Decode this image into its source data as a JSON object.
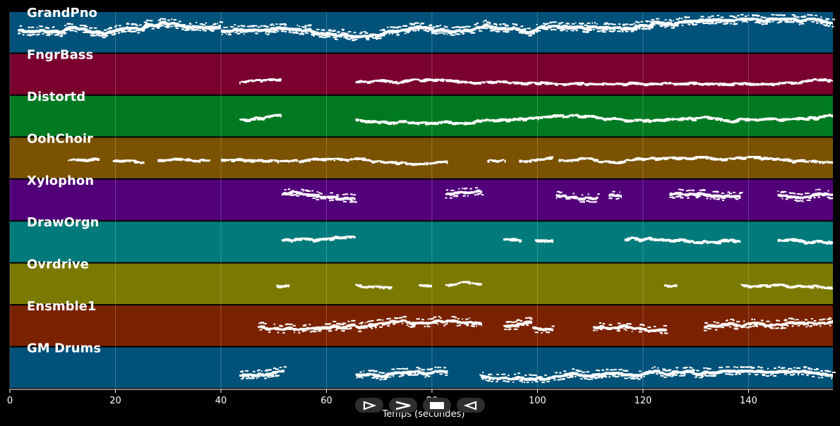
{
  "chart_data": {
    "type": "piano-roll",
    "xlabel": "Temps (secondes)",
    "xlim": [
      0,
      156
    ],
    "xticks": [
      0,
      20,
      40,
      60,
      80,
      100,
      120,
      140
    ],
    "grid": true,
    "tracks": [
      {
        "name": "GrandPno",
        "color": "#00527a",
        "segments": [
          [
            1.5,
            40
          ],
          [
            40,
            156
          ]
        ],
        "pitch_low": 0.15,
        "pitch_high": 0.7,
        "density": 1.2
      },
      {
        "name": "FngrBass",
        "color": "#7a002e",
        "segments": [
          [
            43.5,
            51.5
          ],
          [
            65.5,
            156
          ]
        ],
        "pitch_low": 0.6,
        "pitch_high": 0.72,
        "density": 0.5
      },
      {
        "name": "Distortd",
        "color": "#007a22",
        "segments": [
          [
            43.5,
            51.5
          ],
          [
            65.5,
            156
          ]
        ],
        "pitch_low": 0.45,
        "pitch_high": 0.65,
        "density": 0.6
      },
      {
        "name": "OohChoir",
        "color": "#7a5200",
        "segments": [
          [
            11,
            17
          ],
          [
            19.5,
            25.5
          ],
          [
            28,
            38
          ],
          [
            40,
            83
          ],
          [
            90.5,
            94
          ],
          [
            96.5,
            103
          ],
          [
            104,
            156
          ]
        ],
        "pitch_low": 0.45,
        "pitch_high": 0.62,
        "density": 0.5
      },
      {
        "name": "Xylophon",
        "color": "#52007a",
        "segments": [
          [
            51.5,
            65.5
          ],
          [
            82.5,
            89.5
          ],
          [
            103.5,
            111.5
          ],
          [
            113.5,
            116
          ],
          [
            125,
            138.5
          ],
          [
            145.5,
            156
          ]
        ],
        "pitch_low": 0.25,
        "pitch_high": 0.45,
        "density": 0.8
      },
      {
        "name": "DrawOrgn",
        "color": "#007a7a",
        "segments": [
          [
            51.5,
            65.5
          ],
          [
            93.5,
            97
          ],
          [
            99.5,
            103
          ],
          [
            116.5,
            138.5
          ],
          [
            145.5,
            156
          ]
        ],
        "pitch_low": 0.35,
        "pitch_high": 0.5,
        "density": 0.7
      },
      {
        "name": "Ovrdrive",
        "color": "#7a7a00",
        "segments": [
          [
            50.5,
            53
          ],
          [
            65.5,
            72.5
          ],
          [
            77.5,
            80
          ],
          [
            82.5,
            89.5
          ],
          [
            124,
            126.5
          ],
          [
            138.5,
            156
          ]
        ],
        "pitch_low": 0.42,
        "pitch_high": 0.6,
        "density": 0.5
      },
      {
        "name": "Ensmble1",
        "color": "#7a2200",
        "segments": [
          [
            47,
            65.5
          ],
          [
            65.5,
            89.5
          ],
          [
            93.5,
            99
          ],
          [
            99,
            103
          ],
          [
            110.5,
            124.5
          ],
          [
            131.5,
            138.5
          ],
          [
            138.5,
            156
          ]
        ],
        "pitch_low": 0.35,
        "pitch_high": 0.65,
        "density": 0.8
      },
      {
        "name": "GM Drums",
        "color": "#00527a",
        "segments": [
          [
            43.5,
            52
          ],
          [
            65.5,
            83
          ],
          [
            89,
            156
          ]
        ],
        "pitch_low": 0.55,
        "pitch_high": 0.75,
        "density": 1.0
      }
    ]
  },
  "controls": [
    {
      "name": "play-button",
      "icon": "play-icon"
    },
    {
      "name": "forward-button",
      "icon": "forward-icon"
    },
    {
      "name": "stop-button",
      "icon": "stop-icon"
    },
    {
      "name": "rewind-button",
      "icon": "rewind-icon"
    }
  ]
}
